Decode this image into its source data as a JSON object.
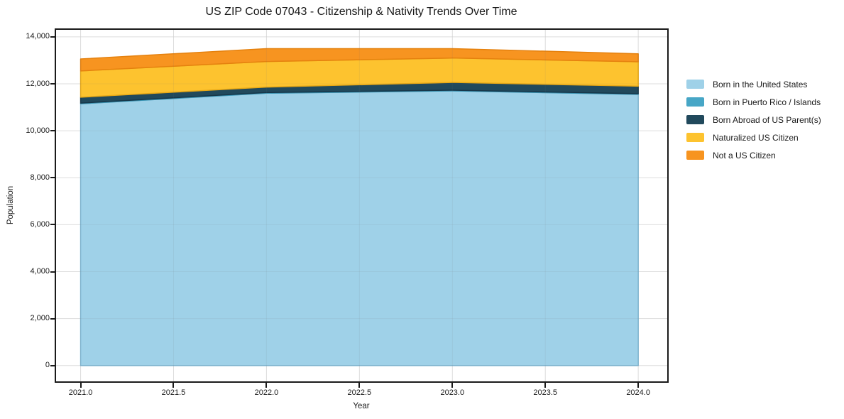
{
  "chart_data": {
    "type": "area",
    "stacked": true,
    "title": "US ZIP Code 07043 - Citizenship & Nativity Trends Over Time",
    "xlabel": "Year",
    "ylabel": "Population",
    "x": [
      2021,
      2022,
      2023,
      2024
    ],
    "series": [
      {
        "name": "Born in the United States",
        "color": "#9FD1E8",
        "edge": "#7fb9d6",
        "values": [
          11150,
          11600,
          11700,
          11550
        ]
      },
      {
        "name": "Born in Puerto Rico / Islands",
        "color": "#47A6C6",
        "edge": "#3a93b2",
        "values": [
          30,
          30,
          30,
          30
        ]
      },
      {
        "name": "Born Abroad of US Parent(s)",
        "color": "#21495C",
        "edge": "#16374a",
        "values": [
          250,
          230,
          330,
          320
        ]
      },
      {
        "name": "Naturalized US Citizen",
        "color": "#FDC32F",
        "edge": "#e9a915",
        "values": [
          1120,
          1090,
          1040,
          1040
        ]
      },
      {
        "name": "Not a US Citizen",
        "color": "#F79420",
        "edge": "#e5810e",
        "values": [
          510,
          550,
          400,
          340
        ]
      }
    ],
    "totals": [
      13060,
      13500,
      13500,
      13280
    ],
    "xticks": {
      "values": [
        2021.0,
        2021.5,
        2022.0,
        2022.5,
        2023.0,
        2023.5,
        2024.0
      ],
      "labels": [
        "2021.0",
        "2021.5",
        "2022.0",
        "2022.5",
        "2023.0",
        "2023.5",
        "2024.0"
      ]
    },
    "yticks": {
      "values": [
        0,
        2000,
        4000,
        6000,
        8000,
        10000,
        12000,
        14000
      ],
      "labels": [
        "0",
        "2,000",
        "4,000",
        "6,000",
        "8,000",
        "10,000",
        "12,000",
        "14,000"
      ]
    },
    "xlim": [
      2020.868,
      2024.156
    ],
    "ylim": [
      -672,
      14300
    ],
    "grid": true,
    "grid_color": "#e9e9e9",
    "legend_position": "right-outside"
  }
}
